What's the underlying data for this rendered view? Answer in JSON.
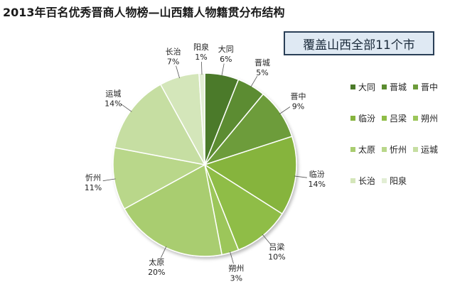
{
  "title": "2013年百名优秀晋商人物榜—山西籍人物籍贯分布结构",
  "callout": "覆盖山西全部11个市",
  "chart_data": {
    "type": "pie",
    "title": "2013年百名优秀晋商人物榜—山西籍人物籍贯分布结构",
    "legend_position": "right",
    "slices": [
      {
        "label": "大同",
        "value": 6,
        "display": "6%",
        "color": "#4b7a2a"
      },
      {
        "label": "晋城",
        "value": 5,
        "display": "5%",
        "color": "#5b8c30"
      },
      {
        "label": "晋中",
        "value": 9,
        "display": "9%",
        "color": "#6d9c3a"
      },
      {
        "label": "临汾",
        "value": 14,
        "display": "14%",
        "color": "#86b43e"
      },
      {
        "label": "吕梁",
        "value": 10,
        "display": "10%",
        "color": "#8fbd47"
      },
      {
        "label": "朔州",
        "value": 3,
        "display": "3%",
        "color": "#9cc65a"
      },
      {
        "label": "太原",
        "value": 20,
        "display": "20%",
        "color": "#a9cd70"
      },
      {
        "label": "忻州",
        "value": 11,
        "display": "11%",
        "color": "#b9d78a"
      },
      {
        "label": "运城",
        "value": 14,
        "display": "14%",
        "color": "#c6dea2"
      },
      {
        "label": "长治",
        "value": 7,
        "display": "7%",
        "color": "#d4e6ba"
      },
      {
        "label": "阳泉",
        "value": 1,
        "display": "1%",
        "color": "#e2eed4"
      }
    ]
  }
}
